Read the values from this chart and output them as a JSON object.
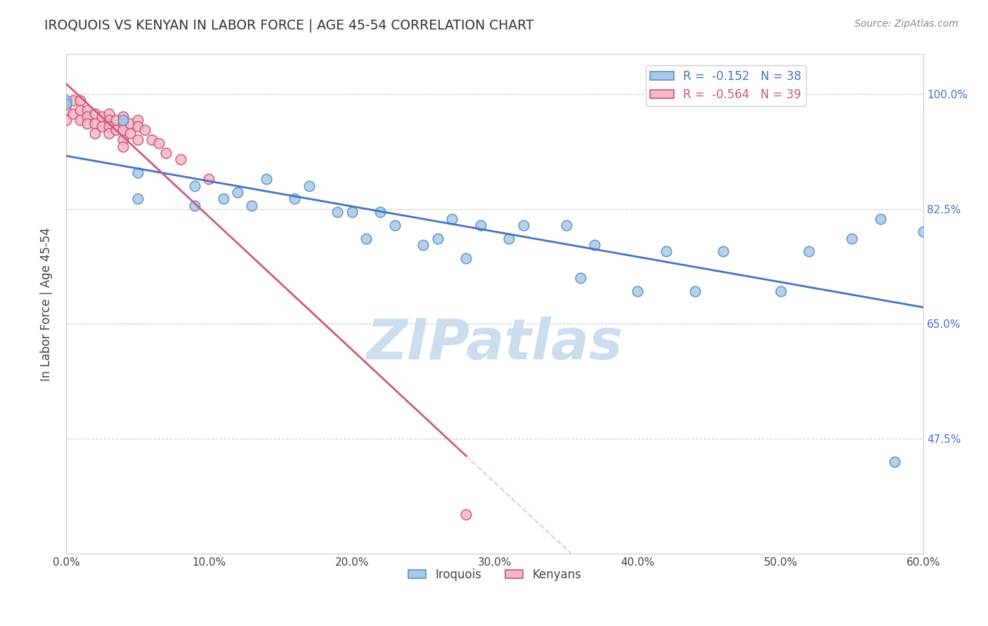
{
  "title": "IROQUOIS VS KENYAN IN LABOR FORCE | AGE 45-54 CORRELATION CHART",
  "source_text": "Source: ZipAtlas.com",
  "ylabel": "In Labor Force | Age 45-54",
  "xlim": [
    0.0,
    0.6
  ],
  "ylim": [
    0.3,
    1.06
  ],
  "yticks": [
    0.475,
    0.65,
    0.825,
    1.0
  ],
  "ytick_labels": [
    "47.5%",
    "65.0%",
    "82.5%",
    "100.0%"
  ],
  "xticks": [
    0.0,
    0.1,
    0.2,
    0.3,
    0.4,
    0.5,
    0.6
  ],
  "xtick_labels": [
    "0.0%",
    "10.0%",
    "20.0%",
    "30.0%",
    "40.0%",
    "50.0%",
    "60.0%"
  ],
  "iroquois_color": "#a8c8e8",
  "iroquois_edge": "#5a8fc2",
  "kenyan_color": "#f4b8c8",
  "kenyan_edge": "#d05070",
  "iroquois_r": -0.152,
  "iroquois_n": 38,
  "kenyan_r": -0.564,
  "kenyan_n": 39,
  "iroquois_line_color": "#4472c4",
  "kenyan_line_color": "#d05878",
  "watermark_color": "#ccdded",
  "bg_color": "#ffffff",
  "grid_color": "#bbbbbb",
  "title_color": "#333333",
  "label_color": "#444444",
  "right_label_color": "#4472c4",
  "iroquois_x": [
    0.0,
    0.0,
    0.04,
    0.05,
    0.05,
    0.09,
    0.09,
    0.11,
    0.12,
    0.13,
    0.14,
    0.16,
    0.17,
    0.19,
    0.2,
    0.21,
    0.22,
    0.23,
    0.25,
    0.26,
    0.27,
    0.28,
    0.29,
    0.31,
    0.32,
    0.35,
    0.36,
    0.37,
    0.4,
    0.42,
    0.44,
    0.46,
    0.5,
    0.52,
    0.55,
    0.57,
    0.58,
    0.6
  ],
  "iroquois_y": [
    0.99,
    0.985,
    0.96,
    0.88,
    0.84,
    0.83,
    0.86,
    0.84,
    0.85,
    0.83,
    0.87,
    0.84,
    0.86,
    0.82,
    0.82,
    0.78,
    0.82,
    0.8,
    0.77,
    0.78,
    0.81,
    0.75,
    0.8,
    0.78,
    0.8,
    0.8,
    0.72,
    0.77,
    0.7,
    0.76,
    0.7,
    0.76,
    0.7,
    0.76,
    0.78,
    0.81,
    0.44,
    0.79
  ],
  "kenyan_x": [
    0.0,
    0.0,
    0.0,
    0.005,
    0.005,
    0.01,
    0.01,
    0.01,
    0.015,
    0.015,
    0.015,
    0.02,
    0.02,
    0.02,
    0.025,
    0.025,
    0.03,
    0.03,
    0.03,
    0.03,
    0.035,
    0.035,
    0.04,
    0.04,
    0.04,
    0.04,
    0.04,
    0.045,
    0.045,
    0.05,
    0.05,
    0.05,
    0.055,
    0.06,
    0.065,
    0.07,
    0.08,
    0.1,
    0.28
  ],
  "kenyan_y": [
    0.985,
    0.975,
    0.96,
    0.99,
    0.97,
    0.99,
    0.975,
    0.96,
    0.975,
    0.965,
    0.955,
    0.97,
    0.955,
    0.94,
    0.965,
    0.95,
    0.97,
    0.96,
    0.95,
    0.94,
    0.96,
    0.945,
    0.965,
    0.955,
    0.945,
    0.93,
    0.92,
    0.955,
    0.94,
    0.96,
    0.95,
    0.93,
    0.945,
    0.93,
    0.925,
    0.91,
    0.9,
    0.87,
    0.36
  ]
}
